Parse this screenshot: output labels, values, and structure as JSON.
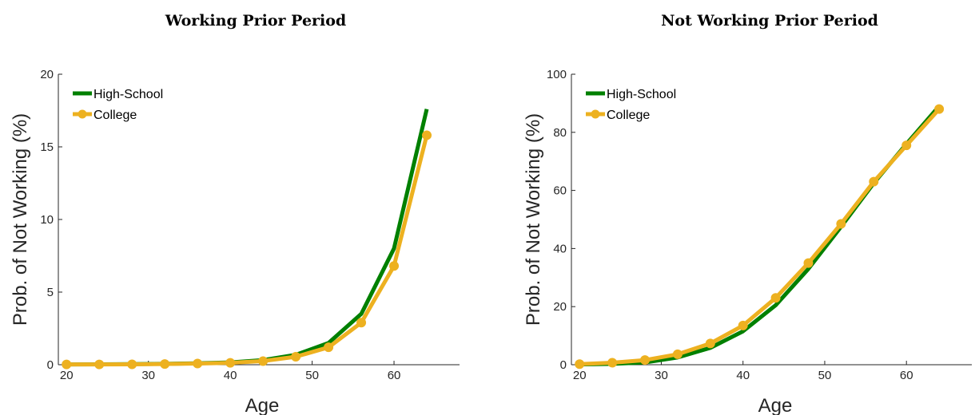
{
  "chart_data": [
    {
      "type": "line",
      "title": "Working Prior Period",
      "xlabel": "Age",
      "ylabel": "Prob. of Not Working (%)",
      "xlim": [
        19,
        68
      ],
      "ylim": [
        0,
        20
      ],
      "xticks": [
        20,
        30,
        40,
        50,
        60
      ],
      "yticks": [
        0,
        5,
        10,
        15,
        20
      ],
      "x": [
        20,
        24,
        28,
        32,
        36,
        40,
        44,
        48,
        52,
        56,
        60,
        64
      ],
      "series": [
        {
          "name": "High-School",
          "color": "#008000",
          "marker": false,
          "values": [
            0.02,
            0.03,
            0.04,
            0.06,
            0.1,
            0.16,
            0.32,
            0.68,
            1.5,
            3.5,
            8.0,
            17.6
          ]
        },
        {
          "name": "College",
          "color": "#EDB120",
          "marker": true,
          "values": [
            0.02,
            0.02,
            0.03,
            0.05,
            0.08,
            0.13,
            0.25,
            0.55,
            1.2,
            2.9,
            6.8,
            15.8
          ]
        }
      ],
      "legend": "top-left",
      "grid": false
    },
    {
      "type": "line",
      "title": "Not Working Prior Period",
      "xlabel": "Age",
      "ylabel": "Prob. of Not Working (%)",
      "xlim": [
        19,
        68
      ],
      "ylim": [
        0,
        100
      ],
      "xticks": [
        20,
        30,
        40,
        50,
        60
      ],
      "yticks": [
        0,
        20,
        40,
        60,
        80,
        100
      ],
      "x": [
        20,
        24,
        28,
        32,
        36,
        40,
        44,
        48,
        52,
        56,
        60,
        64
      ],
      "series": [
        {
          "name": "High-School",
          "color": "#008000",
          "marker": false,
          "values": [
            0.1,
            0.3,
            0.8,
            2.5,
            5.8,
            11.5,
            20.5,
            33.0,
            47.5,
            62.5,
            76.0,
            89.0
          ]
        },
        {
          "name": "College",
          "color": "#EDB120",
          "marker": true,
          "values": [
            0.2,
            0.7,
            1.6,
            3.6,
            7.3,
            13.5,
            23.0,
            35.0,
            48.5,
            63.0,
            75.5,
            88.0
          ]
        }
      ],
      "legend": "top-left",
      "grid": false
    }
  ]
}
